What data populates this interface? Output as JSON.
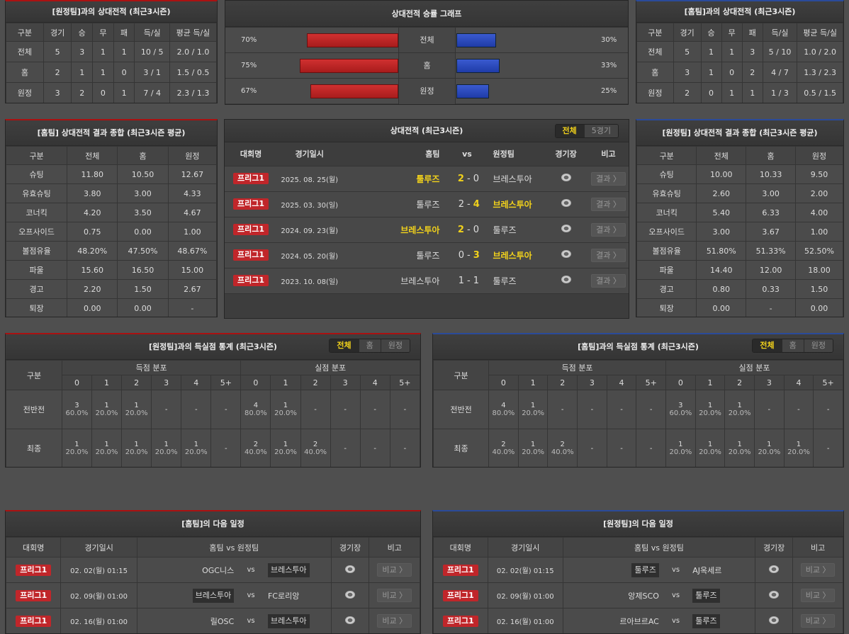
{
  "away_h2h": {
    "title": "[원정팀]과의 상대전적 (최근3시즌)",
    "headers": [
      "구분",
      "경기",
      "승",
      "무",
      "패",
      "득/실",
      "평균 득/실"
    ],
    "rows": [
      [
        "전체",
        "5",
        "3",
        "1",
        "1",
        "10 / 5",
        "2.0 / 1.0"
      ],
      [
        "홈",
        "2",
        "1",
        "1",
        "0",
        "3 / 1",
        "1.5 / 0.5"
      ],
      [
        "원정",
        "3",
        "2",
        "0",
        "1",
        "7 / 4",
        "2.3 / 1.3"
      ]
    ]
  },
  "graph": {
    "title": "상대전적 승률 그래프",
    "colors": {
      "home": "#c0262a",
      "away": "#2a4fc0"
    },
    "rows": [
      {
        "label": "전체",
        "left": "70%",
        "left_value": 70,
        "right": "30%",
        "right_value": 30
      },
      {
        "label": "홈",
        "left": "75%",
        "left_value": 75,
        "right": "33%",
        "right_value": 33
      },
      {
        "label": "원정",
        "left": "67%",
        "left_value": 67,
        "right": "25%",
        "right_value": 25
      }
    ]
  },
  "home_h2h": {
    "title": "[홈팀]과의 상대전적 (최근3시즌)",
    "headers": [
      "구분",
      "경기",
      "승",
      "무",
      "패",
      "득/실",
      "평균 득/실"
    ],
    "rows": [
      [
        "전체",
        "5",
        "1",
        "1",
        "3",
        "5 / 10",
        "1.0 / 2.0"
      ],
      [
        "홈",
        "3",
        "1",
        "0",
        "2",
        "4 / 7",
        "1.3 / 2.3"
      ],
      [
        "원정",
        "2",
        "0",
        "1",
        "1",
        "1 / 3",
        "0.5 / 1.5"
      ]
    ]
  },
  "home_summary": {
    "title": "[홈팀] 상대전적 결과 종합 (최근3시즌 평균)",
    "headers": [
      "구분",
      "전체",
      "홈",
      "원정"
    ],
    "rows": [
      [
        "슈팅",
        "11.80",
        "10.50",
        "12.67"
      ],
      [
        "유효슈팅",
        "3.80",
        "3.00",
        "4.33"
      ],
      [
        "코너킥",
        "4.20",
        "3.50",
        "4.67"
      ],
      [
        "오프사이드",
        "0.75",
        "0.00",
        "1.00"
      ],
      [
        "볼점유율",
        "48.20%",
        "47.50%",
        "48.67%"
      ],
      [
        "파울",
        "15.60",
        "16.50",
        "15.00"
      ],
      [
        "경고",
        "2.20",
        "1.50",
        "2.67"
      ],
      [
        "퇴장",
        "0.00",
        "0.00",
        "-"
      ]
    ]
  },
  "away_summary": {
    "title": "[원정팀] 상대전적 결과 종합 (최근3시즌 평균)",
    "headers": [
      "구분",
      "전체",
      "홈",
      "원정"
    ],
    "rows": [
      [
        "슈팅",
        "10.00",
        "10.33",
        "9.50"
      ],
      [
        "유효슈팅",
        "2.60",
        "3.00",
        "2.00"
      ],
      [
        "코너킥",
        "5.40",
        "6.33",
        "4.00"
      ],
      [
        "오프사이드",
        "3.00",
        "3.67",
        "1.00"
      ],
      [
        "볼점유율",
        "51.80%",
        "51.33%",
        "52.50%"
      ],
      [
        "파울",
        "14.40",
        "12.00",
        "18.00"
      ],
      [
        "경고",
        "0.80",
        "0.33",
        "1.50"
      ],
      [
        "퇴장",
        "0.00",
        "-",
        "0.00"
      ]
    ]
  },
  "h2h_matches": {
    "title": "상대전적 (최근3시즌)",
    "tabs": [
      "전체",
      "5경기"
    ],
    "active_tab": 0,
    "headers": {
      "league": "대회명",
      "date": "경기일시",
      "home": "홈팀",
      "vs": "vs",
      "away": "원정팀",
      "venue": "경기장",
      "note": "비고"
    },
    "rows": [
      {
        "league": "프리그1",
        "date": "2025. 08. 25(월)",
        "home": "툴루즈",
        "hs": "2",
        "as": "0",
        "away": "브레스투아",
        "winner": "home",
        "btn": "결과 〉"
      },
      {
        "league": "프리그1",
        "date": "2025. 03. 30(일)",
        "home": "툴루즈",
        "hs": "2",
        "as": "4",
        "away": "브레스투아",
        "winner": "away",
        "btn": "결과 〉"
      },
      {
        "league": "프리그1",
        "date": "2024. 09. 23(월)",
        "home": "브레스투아",
        "hs": "2",
        "as": "0",
        "away": "툴루즈",
        "winner": "home",
        "btn": "결과 〉"
      },
      {
        "league": "프리그1",
        "date": "2024. 05. 20(월)",
        "home": "툴루즈",
        "hs": "0",
        "as": "3",
        "away": "브레스투아",
        "winner": "away",
        "btn": "결과 〉"
      },
      {
        "league": "프리그1",
        "date": "2023. 10. 08(일)",
        "home": "브레스투아",
        "hs": "1",
        "as": "1",
        "away": "툴루즈",
        "winner": "draw",
        "btn": "결과 〉"
      }
    ]
  },
  "away_goals": {
    "title": "[원정팀]과의 득실점 통계 (최근3시즌)",
    "tabs": [
      "전체",
      "홈",
      "원정"
    ],
    "active_tab": 0,
    "label": "구분",
    "scored": "득점 분포",
    "conceded": "실점 분포",
    "cols": [
      "0",
      "1",
      "2",
      "3",
      "4",
      "5+"
    ],
    "rows": [
      {
        "label": "전반전",
        "cells": [
          [
            "3",
            "60.0%"
          ],
          [
            "1",
            "20.0%"
          ],
          [
            "1",
            "20.0%"
          ],
          [
            "-",
            ""
          ],
          [
            "-",
            ""
          ],
          [
            "-",
            ""
          ],
          [
            "4",
            "80.0%"
          ],
          [
            "1",
            "20.0%"
          ],
          [
            "-",
            ""
          ],
          [
            "-",
            ""
          ],
          [
            "-",
            ""
          ],
          [
            "-",
            ""
          ]
        ]
      },
      {
        "label": "최종",
        "cells": [
          [
            "1",
            "20.0%"
          ],
          [
            "1",
            "20.0%"
          ],
          [
            "1",
            "20.0%"
          ],
          [
            "1",
            "20.0%"
          ],
          [
            "1",
            "20.0%"
          ],
          [
            "-",
            ""
          ],
          [
            "2",
            "40.0%"
          ],
          [
            "1",
            "20.0%"
          ],
          [
            "2",
            "40.0%"
          ],
          [
            "-",
            ""
          ],
          [
            "-",
            ""
          ],
          [
            "-",
            ""
          ]
        ]
      }
    ]
  },
  "home_goals": {
    "title": "[홈팀]과의 득실점 통계 (최근3시즌)",
    "tabs": [
      "전체",
      "홈",
      "원정"
    ],
    "active_tab": 0,
    "label": "구분",
    "scored": "득점 분포",
    "conceded": "실점 분포",
    "cols": [
      "0",
      "1",
      "2",
      "3",
      "4",
      "5+"
    ],
    "rows": [
      {
        "label": "전반전",
        "cells": [
          [
            "4",
            "80.0%"
          ],
          [
            "1",
            "20.0%"
          ],
          [
            "-",
            ""
          ],
          [
            "-",
            ""
          ],
          [
            "-",
            ""
          ],
          [
            "-",
            ""
          ],
          [
            "3",
            "60.0%"
          ],
          [
            "1",
            "20.0%"
          ],
          [
            "1",
            "20.0%"
          ],
          [
            "-",
            ""
          ],
          [
            "-",
            ""
          ],
          [
            "-",
            ""
          ]
        ]
      },
      {
        "label": "최종",
        "cells": [
          [
            "2",
            "40.0%"
          ],
          [
            "1",
            "20.0%"
          ],
          [
            "2",
            "40.0%"
          ],
          [
            "-",
            ""
          ],
          [
            "-",
            ""
          ],
          [
            "-",
            ""
          ],
          [
            "1",
            "20.0%"
          ],
          [
            "1",
            "20.0%"
          ],
          [
            "1",
            "20.0%"
          ],
          [
            "1",
            "20.0%"
          ],
          [
            "1",
            "20.0%"
          ],
          [
            "-",
            ""
          ]
        ]
      }
    ]
  },
  "home_next": {
    "title": "[홈팀]의 다음 일정",
    "headers": {
      "league": "대회명",
      "date": "경기일시",
      "home": "홈팀",
      "vs": "vs",
      "away": "원정팀",
      "venue": "경기장",
      "note": "비고"
    },
    "rows": [
      {
        "league": "프리그1",
        "date": "02. 02(월) 01:15",
        "home": "OGC니스",
        "away": "브레스투아",
        "hl": "away",
        "btn": "비교 〉"
      },
      {
        "league": "프리그1",
        "date": "02. 09(월) 01:00",
        "home": "브레스투아",
        "away": "FC로리앙",
        "hl": "home",
        "btn": "비교 〉"
      },
      {
        "league": "프리그1",
        "date": "02. 16(월) 01:00",
        "home": "릴OSC",
        "away": "브레스투아",
        "hl": "away",
        "btn": "비교 〉"
      }
    ]
  },
  "away_next": {
    "title": "[원정팀]의 다음 일정",
    "headers": {
      "league": "대회명",
      "date": "경기일시",
      "home": "홈팀",
      "vs": "vs",
      "away": "원정팀",
      "venue": "경기장",
      "note": "비고"
    },
    "rows": [
      {
        "league": "프리그1",
        "date": "02. 02(월) 01:15",
        "home": "툴루즈",
        "away": "AJ옥세르",
        "hl": "home",
        "btn": "비교 〉"
      },
      {
        "league": "프리그1",
        "date": "02. 09(월) 01:00",
        "home": "앙제SCO",
        "away": "툴루즈",
        "hl": "away",
        "btn": "비교 〉"
      },
      {
        "league": "프리그1",
        "date": "02. 16(월) 01:00",
        "home": "르아브르AC",
        "away": "툴루즈",
        "hl": "away",
        "btn": "비교 〉"
      }
    ]
  }
}
